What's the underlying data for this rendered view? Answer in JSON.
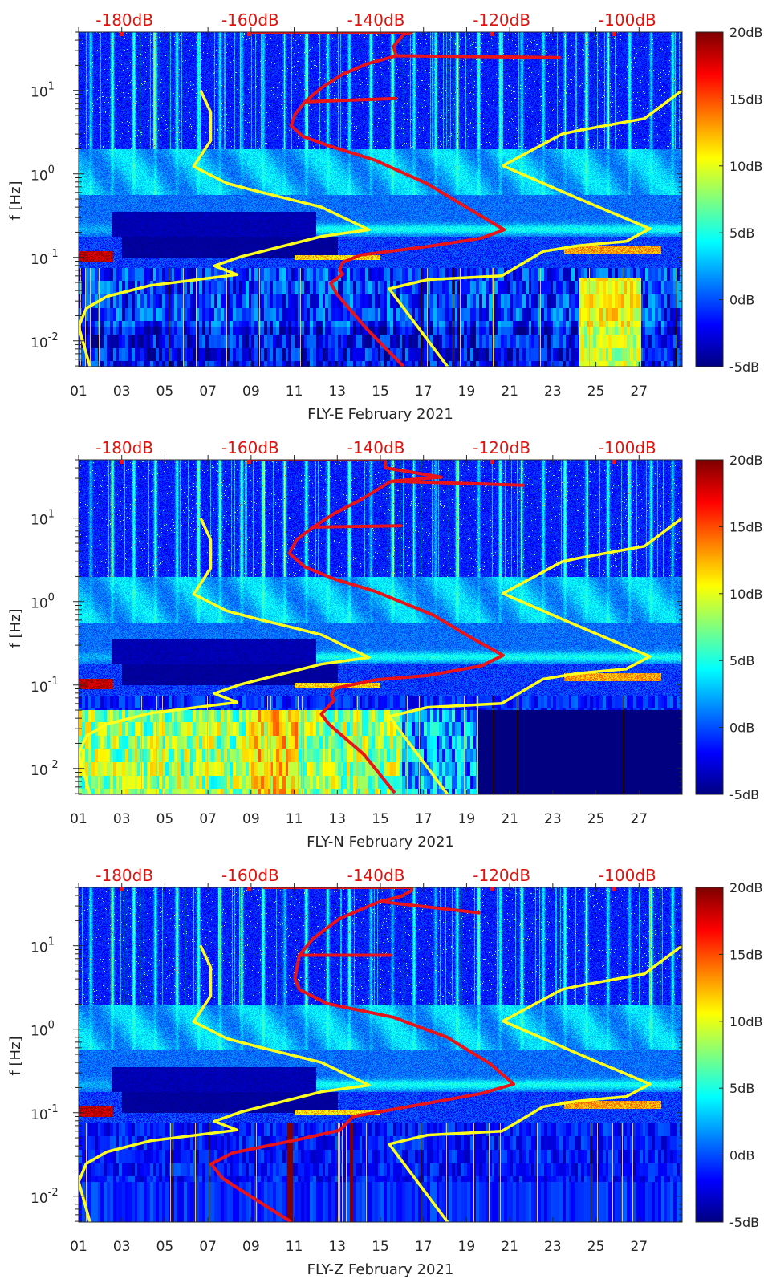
{
  "chart_data": [
    {
      "type": "heatmap",
      "xlabel": "FLY-E February 2021",
      "ylabel": "f [Hz]",
      "xlim": [
        1,
        29
      ],
      "ylim": [
        0.0049,
        50
      ],
      "y_scale": "log",
      "x_tick_values": [
        1,
        3,
        5,
        7,
        9,
        11,
        13,
        15,
        17,
        19,
        21,
        23,
        25,
        27
      ],
      "x_tick_labels": [
        "01",
        "03",
        "05",
        "07",
        "09",
        "11",
        "13",
        "15",
        "17",
        "19",
        "21",
        "23",
        "25",
        "27"
      ],
      "y_tick_values": [
        0.01,
        0.1,
        1,
        10
      ],
      "y_tick_labels": [
        {
          "base": "10",
          "exp": "-2"
        },
        {
          "base": "10",
          "exp": "-1"
        },
        {
          "base": "10",
          "exp": "0"
        },
        {
          "base": "10",
          "exp": "1"
        }
      ],
      "top_axis": {
        "xlim": [
          -187.3,
          -91.3
        ],
        "tick_values": [
          -180,
          -160,
          -140,
          -120,
          -100
        ],
        "tick_labels": [
          "-180dB",
          "-160dB",
          "-140dB",
          "-120dB",
          "-100dB"
        ],
        "color": "#e0140f"
      },
      "colorbar": {
        "range": [
          -5,
          20
        ],
        "tick_values": [
          20,
          15,
          10,
          5,
          0,
          -5
        ],
        "tick_labels": [
          "20dB",
          "15dB",
          "10dB",
          "5dB",
          "0dB",
          "-5dB"
        ],
        "colormap": "jet"
      },
      "lines": [
        {
          "color": "#ffff1e",
          "axis": "top",
          "points": [
            [
              -167.9,
              10
            ],
            [
              -166.3,
              5.5
            ],
            [
              -166.3,
              2.5
            ],
            [
              -169.0,
              1.23
            ],
            [
              -163.7,
              0.77
            ],
            [
              -158.9,
              0.62
            ],
            [
              -148.7,
              0.4
            ],
            [
              -141.1,
              0.214
            ],
            [
              -148.7,
              0.178
            ],
            [
              -161.5,
              0.102
            ],
            [
              -165.7,
              0.079
            ],
            [
              -162.1,
              0.062
            ],
            [
              -175.9,
              0.046
            ],
            [
              -182.8,
              0.034
            ],
            [
              -186.1,
              0.0245
            ],
            [
              -187.3,
              0.0149
            ],
            [
              -185.5,
              0.0049
            ]
          ]
        },
        {
          "color": "#ffff1e",
          "axis": "top",
          "points": [
            [
              -91.3,
              10
            ],
            [
              -97.3,
              4.6
            ],
            [
              -100.2,
              4.2
            ],
            [
              -107.9,
              3.3
            ],
            [
              -110.4,
              3.0
            ],
            [
              -119.8,
              1.25
            ],
            [
              -107.9,
              0.51
            ],
            [
              -96.4,
              0.22
            ],
            [
              -100.2,
              0.156
            ],
            [
              -107.9,
              0.138
            ],
            [
              -113.4,
              0.118
            ],
            [
              -120.0,
              0.06
            ],
            [
              -131.8,
              0.054
            ],
            [
              -137.9,
              0.042
            ],
            [
              -128.6,
              0.0049
            ]
          ]
        },
        {
          "color": "#e8141a",
          "axis": "top",
          "points": [
            [
              -160.2,
              50
            ],
            [
              -134.3,
              50
            ],
            [
              -135.6,
              47
            ],
            [
              -137.2,
              33.8
            ],
            [
              -136.8,
              26
            ],
            [
              -110.8,
              24.8
            ],
            [
              -136.8,
              26
            ],
            [
              -141.5,
              20.7
            ],
            [
              -145.3,
              15.6
            ],
            [
              -148.7,
              10.7
            ],
            [
              -151.3,
              7.3
            ],
            [
              -136.8,
              8.0
            ],
            [
              -151.3,
              7.3
            ],
            [
              -152.9,
              5.15
            ],
            [
              -153.5,
              3.78
            ],
            [
              -151.7,
              2.83
            ],
            [
              -147.5,
              2.17
            ],
            [
              -140.2,
              1.46
            ],
            [
              -131.8,
              0.76
            ],
            [
              -125.4,
              0.39
            ],
            [
              -119.6,
              0.214
            ],
            [
              -123.2,
              0.17
            ],
            [
              -131.8,
              0.135
            ],
            [
              -142.4,
              0.107
            ],
            [
              -145.3,
              0.087
            ],
            [
              -145.8,
              0.07
            ],
            [
              -145.3,
              0.063
            ],
            [
              -147.2,
              0.049
            ],
            [
              -146.2,
              0.036
            ],
            [
              -141.5,
              0.014
            ],
            [
              -135.6,
              0.0049
            ]
          ]
        }
      ]
    },
    {
      "type": "heatmap",
      "xlabel": "FLY-N February 2021",
      "ylabel": "f [Hz]",
      "xlim": [
        1,
        29
      ],
      "ylim": [
        0.0049,
        50
      ],
      "y_scale": "log",
      "x_tick_values": [
        1,
        3,
        5,
        7,
        9,
        11,
        13,
        15,
        17,
        19,
        21,
        23,
        25,
        27
      ],
      "x_tick_labels": [
        "01",
        "03",
        "05",
        "07",
        "09",
        "11",
        "13",
        "15",
        "17",
        "19",
        "21",
        "23",
        "25",
        "27"
      ],
      "y_tick_values": [
        0.01,
        0.1,
        1,
        10
      ],
      "y_tick_labels": [
        {
          "base": "10",
          "exp": "-2"
        },
        {
          "base": "10",
          "exp": "-1"
        },
        {
          "base": "10",
          "exp": "0"
        },
        {
          "base": "10",
          "exp": "1"
        }
      ],
      "top_axis": {
        "xlim": [
          -187.3,
          -91.3
        ],
        "tick_values": [
          -180,
          -160,
          -140,
          -120,
          -100
        ],
        "tick_labels": [
          "-180dB",
          "-160dB",
          "-140dB",
          "-120dB",
          "-100dB"
        ],
        "color": "#e0140f"
      },
      "colorbar": {
        "range": [
          -5,
          20
        ],
        "tick_values": [
          20,
          15,
          10,
          5,
          0,
          -5
        ],
        "tick_labels": [
          "20dB",
          "15dB",
          "10dB",
          "5dB",
          "0dB",
          "-5dB"
        ],
        "colormap": "jet"
      },
      "lines": [
        {
          "color": "#ffff1e",
          "axis": "top",
          "points": [
            [
              -167.9,
              10
            ],
            [
              -166.3,
              5.5
            ],
            [
              -166.3,
              2.5
            ],
            [
              -169.0,
              1.23
            ],
            [
              -163.7,
              0.77
            ],
            [
              -158.9,
              0.62
            ],
            [
              -148.7,
              0.4
            ],
            [
              -141.1,
              0.214
            ],
            [
              -148.7,
              0.178
            ],
            [
              -161.5,
              0.102
            ],
            [
              -165.7,
              0.079
            ],
            [
              -162.1,
              0.062
            ],
            [
              -175.9,
              0.046
            ],
            [
              -182.8,
              0.034
            ],
            [
              -186.1,
              0.0245
            ],
            [
              -187.3,
              0.0149
            ],
            [
              -185.5,
              0.0049
            ]
          ]
        },
        {
          "color": "#ffff1e",
          "axis": "top",
          "points": [
            [
              -91.3,
              10
            ],
            [
              -97.3,
              4.6
            ],
            [
              -100.2,
              4.2
            ],
            [
              -107.9,
              3.3
            ],
            [
              -110.4,
              3.0
            ],
            [
              -119.8,
              1.25
            ],
            [
              -107.9,
              0.51
            ],
            [
              -96.4,
              0.22
            ],
            [
              -100.2,
              0.156
            ],
            [
              -107.9,
              0.138
            ],
            [
              -113.4,
              0.118
            ],
            [
              -120.0,
              0.06
            ],
            [
              -131.8,
              0.054
            ],
            [
              -137.9,
              0.042
            ],
            [
              -128.6,
              0.0049
            ]
          ]
        },
        {
          "color": "#e8141a",
          "axis": "top",
          "points": [
            [
              -160.2,
              50
            ],
            [
              -138.5,
              50
            ],
            [
              -138.5,
              40
            ],
            [
              -129.6,
              31
            ],
            [
              -137.6,
              27.7
            ],
            [
              -116.6,
              24.8
            ],
            [
              -137.6,
              27.7
            ],
            [
              -142.4,
              16.6
            ],
            [
              -146.6,
              11.4
            ],
            [
              -150.0,
              7.8
            ],
            [
              -136.0,
              8.1
            ],
            [
              -150.0,
              7.8
            ],
            [
              -152.6,
              5.5
            ],
            [
              -153.8,
              3.78
            ],
            [
              -151.3,
              2.6
            ],
            [
              -146.6,
              1.86
            ],
            [
              -140.2,
              1.33
            ],
            [
              -130.9,
              0.69
            ],
            [
              -125.4,
              0.39
            ],
            [
              -119.8,
              0.227
            ],
            [
              -123.2,
              0.17
            ],
            [
              -131.8,
              0.13
            ],
            [
              -140.2,
              0.115
            ],
            [
              -146.6,
              0.091
            ],
            [
              -147.1,
              0.075
            ],
            [
              -146.6,
              0.066
            ],
            [
              -148.7,
              0.045
            ],
            [
              -147.5,
              0.034
            ],
            [
              -142.0,
              0.0149
            ],
            [
              -137.0,
              0.0051
            ]
          ]
        }
      ]
    },
    {
      "type": "heatmap",
      "xlabel": "FLY-Z February 2021",
      "ylabel": "f [Hz]",
      "xlim": [
        1,
        29
      ],
      "ylim": [
        0.0049,
        50
      ],
      "y_scale": "log",
      "x_tick_values": [
        1,
        3,
        5,
        7,
        9,
        11,
        13,
        15,
        17,
        19,
        21,
        23,
        25,
        27
      ],
      "x_tick_labels": [
        "01",
        "03",
        "05",
        "07",
        "09",
        "11",
        "13",
        "15",
        "17",
        "19",
        "21",
        "23",
        "25",
        "27"
      ],
      "y_tick_values": [
        0.01,
        0.1,
        1,
        10
      ],
      "y_tick_labels": [
        {
          "base": "10",
          "exp": "-2"
        },
        {
          "base": "10",
          "exp": "-1"
        },
        {
          "base": "10",
          "exp": "0"
        },
        {
          "base": "10",
          "exp": "1"
        }
      ],
      "top_axis": {
        "xlim": [
          -187.3,
          -91.3
        ],
        "tick_values": [
          -180,
          -160,
          -140,
          -120,
          -100
        ],
        "tick_labels": [
          "-180dB",
          "-160dB",
          "-140dB",
          "-120dB",
          "-100dB"
        ],
        "color": "#e0140f"
      },
      "colorbar": {
        "range": [
          -5,
          20
        ],
        "tick_values": [
          20,
          15,
          10,
          5,
          0,
          -5
        ],
        "tick_labels": [
          "20dB",
          "15dB",
          "10dB",
          "5dB",
          "0dB",
          "-5dB"
        ],
        "colormap": "jet"
      },
      "lines": [
        {
          "color": "#ffff1e",
          "axis": "top",
          "points": [
            [
              -167.9,
              10
            ],
            [
              -166.3,
              5.5
            ],
            [
              -166.3,
              2.5
            ],
            [
              -169.0,
              1.23
            ],
            [
              -163.7,
              0.77
            ],
            [
              -158.9,
              0.62
            ],
            [
              -148.7,
              0.4
            ],
            [
              -141.1,
              0.214
            ],
            [
              -148.7,
              0.178
            ],
            [
              -161.5,
              0.102
            ],
            [
              -165.7,
              0.079
            ],
            [
              -162.1,
              0.062
            ],
            [
              -175.9,
              0.046
            ],
            [
              -182.8,
              0.034
            ],
            [
              -186.1,
              0.0245
            ],
            [
              -187.3,
              0.0149
            ],
            [
              -185.5,
              0.0049
            ]
          ]
        },
        {
          "color": "#ffff1e",
          "axis": "top",
          "points": [
            [
              -91.3,
              10
            ],
            [
              -97.3,
              4.6
            ],
            [
              -100.2,
              4.2
            ],
            [
              -107.9,
              3.3
            ],
            [
              -110.4,
              3.0
            ],
            [
              -119.8,
              1.25
            ],
            [
              -107.9,
              0.51
            ],
            [
              -96.4,
              0.22
            ],
            [
              -100.2,
              0.156
            ],
            [
              -107.9,
              0.138
            ],
            [
              -113.4,
              0.118
            ],
            [
              -120.0,
              0.06
            ],
            [
              -131.8,
              0.054
            ],
            [
              -137.9,
              0.042
            ],
            [
              -128.6,
              0.0049
            ]
          ]
        },
        {
          "color": "#e8141a",
          "axis": "top",
          "points": [
            [
              -158.0,
              50
            ],
            [
              -134.3,
              50
            ],
            [
              -134.3,
              46
            ],
            [
              -136.0,
              39
            ],
            [
              -139.4,
              33.8
            ],
            [
              -123.6,
              24.8
            ],
            [
              -139.4,
              33.8
            ],
            [
              -145.8,
              21.2
            ],
            [
              -150.0,
              12.2
            ],
            [
              -152.2,
              7.7
            ],
            [
              -137.6,
              7.7
            ],
            [
              -152.2,
              7.7
            ],
            [
              -152.9,
              4.1
            ],
            [
              -152.2,
              3.0
            ],
            [
              -147.8,
              2.03
            ],
            [
              -137.2,
              1.39
            ],
            [
              -128.7,
              0.8
            ],
            [
              -121.9,
              0.39
            ],
            [
              -118.1,
              0.22
            ],
            [
              -123.2,
              0.17
            ],
            [
              -133.0,
              0.125
            ],
            [
              -143.6,
              0.09
            ],
            [
              -145.8,
              0.0615
            ],
            [
              -152.2,
              0.048
            ],
            [
              -162.8,
              0.033
            ],
            [
              -166.2,
              0.0243
            ],
            [
              -164.4,
              0.0163
            ],
            [
              -153.5,
              0.0049
            ]
          ]
        }
      ]
    }
  ]
}
